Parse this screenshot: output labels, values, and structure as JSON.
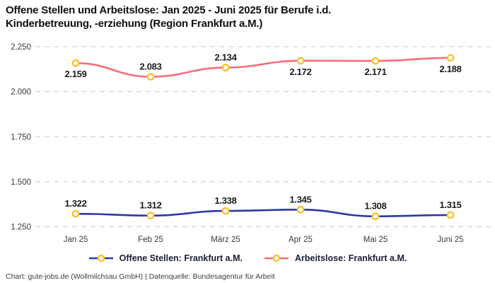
{
  "header": {
    "title_lines": [
      "Offene Stellen und Arbeitslose: Jan 2025 - Juni 2025 für Berufe i.d.",
      "Kinderbetreuung, -erziehung (Region Frankfurt a.M.)"
    ]
  },
  "chart_data": {
    "type": "line",
    "title": "Offene Stellen und Arbeitslose: Jan 2025 - Juni 2025 für Berufe i.d. Kinderbetreuung, -erziehung (Region Frankfurt a.M.)",
    "categories": [
      "Jan 25",
      "Feb 25",
      "März 25",
      "Apr 25",
      "Mai 25",
      "Juni 25"
    ],
    "series": [
      {
        "name": "Offene Stellen: Frankfurt a.M.",
        "color": "#2B38A8",
        "values": [
          1322,
          1312,
          1338,
          1345,
          1308,
          1315
        ],
        "labels": [
          "1.322",
          "1.312",
          "1.338",
          "1.345",
          "1.308",
          "1.315"
        ],
        "label_positions": [
          "above",
          "above",
          "above",
          "above",
          "above",
          "above"
        ]
      },
      {
        "name": "Arbeitslose: Frankfurt a.M.",
        "color": "#F76C7D",
        "values": [
          2159,
          2083,
          2134,
          2172,
          2171,
          2188
        ],
        "labels": [
          "2.159",
          "2.083",
          "2.134",
          "2.172",
          "2.171",
          "2.188"
        ],
        "label_positions": [
          "below",
          "above",
          "above",
          "below",
          "below",
          "below"
        ]
      }
    ],
    "ylim": [
      1250,
      2250
    ],
    "y_ticks": [
      2250,
      2000,
      1750,
      1500,
      1250
    ],
    "y_tick_labels": [
      "2.250",
      "2.000",
      "1.750",
      "1.500",
      "1.250"
    ],
    "grid": "horizontal-dashed",
    "grid_color": "#C8C8C8",
    "legend_position": "bottom",
    "marker": {
      "stroke": "#FCC12F",
      "fill": "#FFFFFF"
    }
  },
  "footer": {
    "text": "Chart: gute-jobs.de (Wollmilchsau GmbH) | Datenquelle: Bundesagentur für Arbeit"
  }
}
